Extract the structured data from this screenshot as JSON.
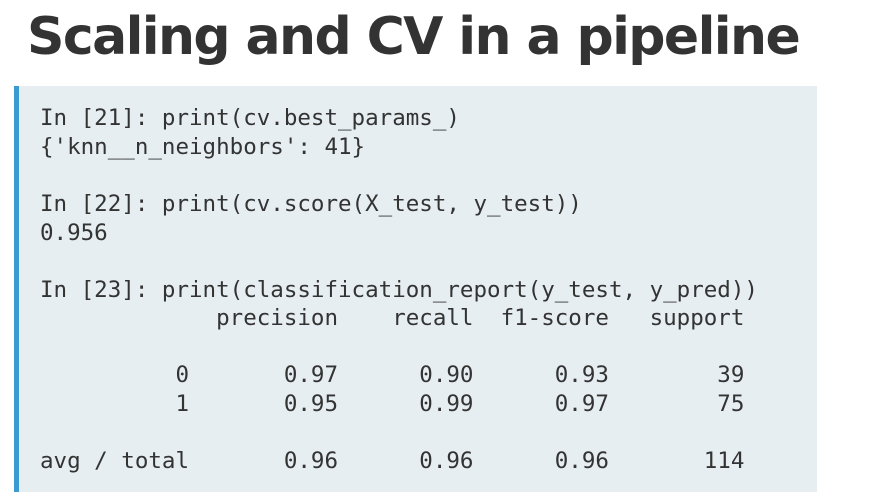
{
  "slide": {
    "title": "Scaling and CV in a pipeline"
  },
  "code": {
    "lines": [
      "In [21]: print(cv.best_params_)",
      "{'knn__n_neighbors': 41}",
      "In [22]: print(cv.score(X_test, y_test))",
      "0.956",
      "In [23]: print(classification_report(y_test, y_pred))",
      "             precision    recall  f1-score   support",
      "          0       0.97      0.90      0.93        39",
      "          1       0.95      0.99      0.97        75",
      "avg / total       0.96      0.96      0.96       114"
    ]
  }
}
